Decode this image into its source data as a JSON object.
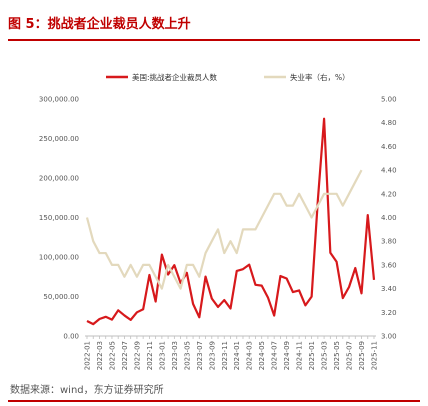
{
  "figure": {
    "title": "图 5：挑战者企业裁员人数上升",
    "source": "数据来源：wind，东方证券研究所"
  },
  "colors": {
    "layoffs": "#d7191c",
    "unemployment": "#e3d9bd",
    "title": "#c00000",
    "axis": "#555555"
  },
  "chart_data": {
    "type": "line",
    "legend_position": "top",
    "grid": false,
    "x": [
      "2022-01",
      "2022-02",
      "2022-03",
      "2022-04",
      "2022-05",
      "2022-06",
      "2022-07",
      "2022-08",
      "2022-09",
      "2022-10",
      "2022-11",
      "2022-12",
      "2023-01",
      "2023-02",
      "2023-03",
      "2023-04",
      "2023-05",
      "2023-06",
      "2023-07",
      "2023-08",
      "2023-09",
      "2023-10",
      "2023-11",
      "2023-12",
      "2024-01",
      "2024-02",
      "2024-03",
      "2024-04",
      "2024-05",
      "2024-06",
      "2024-07",
      "2024-08",
      "2024-09",
      "2024-10",
      "2024-11",
      "2024-12",
      "2025-01",
      "2025-02",
      "2025-03",
      "2025-04",
      "2025-05",
      "2025-06",
      "2025-07",
      "2025-08",
      "2025-09",
      "2025-10",
      "2025-11"
    ],
    "x_tick_labels": [
      "2022-01",
      "2022-03",
      "2022-05",
      "2022-07",
      "2022-09",
      "2022-11",
      "2023-01",
      "2023-03",
      "2023-05",
      "2023-07",
      "2023-09",
      "2023-11",
      "2024-01",
      "2024-03",
      "2024-05",
      "2024-07",
      "2024-09",
      "2024-11",
      "2025-01",
      "2025-03",
      "2025-05",
      "2025-07",
      "2025-09",
      "2025-11"
    ],
    "y_left": {
      "ylim": [
        0,
        300000
      ],
      "ticks": [
        "0.00",
        "50,000.00",
        "100,000.00",
        "150,000.00",
        "200,000.00",
        "250,000.00",
        "300,000.00"
      ],
      "tick_values": [
        0,
        50000,
        100000,
        150000,
        200000,
        250000,
        300000
      ]
    },
    "y_right": {
      "ylim": [
        3.0,
        5.0
      ],
      "ticks": [
        "3.00",
        "3.20",
        "3.40",
        "3.60",
        "3.80",
        "4.00",
        "4.20",
        "4.40",
        "4.60",
        "4.80",
        "5.00"
      ],
      "tick_values": [
        3.0,
        3.2,
        3.4,
        3.6,
        3.8,
        4.0,
        4.2,
        4.4,
        4.6,
        4.8,
        5.0
      ]
    },
    "series": [
      {
        "name": "美国:挑战者企业裁员人数",
        "axis": "left",
        "color": "#d7191c",
        "values": [
          19000,
          15000,
          21500,
          24300,
          20700,
          32500,
          26000,
          20400,
          29990,
          33800,
          77200,
          43600,
          103000,
          77800,
          89700,
          66995,
          80000,
          40700,
          23700,
          75200,
          47500,
          36800,
          45500,
          34800,
          82300,
          84600,
          90300,
          64800,
          63800,
          48800,
          25900,
          75900,
          72800,
          55600,
          57700,
          38800,
          49800,
          172000,
          275000,
          105400,
          94000,
          48000,
          62000,
          86000,
          54000,
          153000,
          71000
        ]
      },
      {
        "name": "失业率（右，%）",
        "axis": "right",
        "color": "#e3d9bd",
        "values": [
          4.0,
          3.8,
          3.7,
          3.7,
          3.6,
          3.6,
          3.5,
          3.6,
          3.5,
          3.6,
          3.6,
          3.5,
          3.4,
          3.6,
          3.5,
          3.4,
          3.6,
          3.6,
          3.5,
          3.7,
          3.8,
          3.9,
          3.7,
          3.8,
          3.7,
          3.9,
          3.9,
          3.9,
          4.0,
          4.1,
          4.2,
          4.2,
          4.1,
          4.1,
          4.2,
          4.1,
          4.0,
          4.1,
          4.2,
          4.2,
          4.2,
          4.1,
          4.2,
          4.3,
          4.4,
          null,
          null
        ]
      }
    ]
  }
}
